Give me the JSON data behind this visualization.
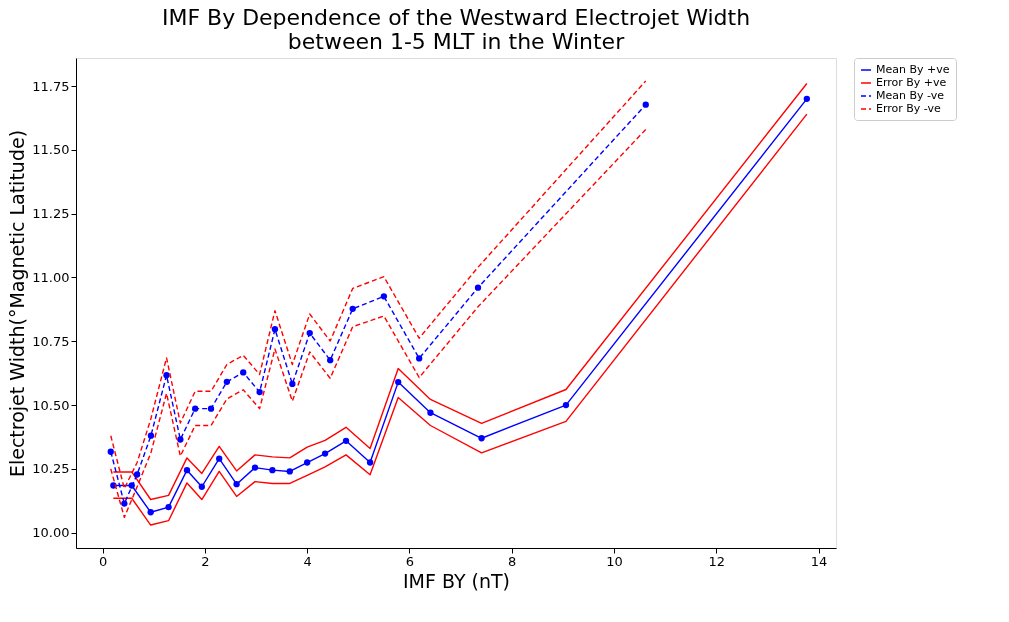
{
  "chart_data": {
    "type": "line",
    "title": [
      "IMF By Dependence of the Westward Electrojet Width",
      "between 1-5 MLT in the Winter"
    ],
    "xlabel": "IMF BY (nT)",
    "ylabel": "Electrojet Width(°Magnetic Latitude)",
    "xlim": [
      -0.52,
      14.34
    ],
    "ylim": [
      9.94,
      11.86
    ],
    "xticks": [
      0,
      2,
      4,
      6,
      8,
      10,
      12,
      14
    ],
    "yticks": [
      {
        "value": 10.0,
        "label": "10.00"
      },
      10.25,
      {
        "value": 10.5,
        "label": "10.50"
      },
      10.75,
      {
        "value": 11.0,
        "label": "11.00"
      },
      11.25,
      {
        "value": 11.5,
        "label": "11.50"
      },
      11.75
    ],
    "grid": false,
    "legend": "top right",
    "series": [
      {
        "name": "Mean By +ve",
        "color": "#0000ff",
        "marker": "circle",
        "line_style": "solid",
        "x": [
          0.21,
          0.57,
          0.94,
          1.29,
          1.65,
          1.94,
          2.28,
          2.62,
          2.98,
          3.32,
          3.66,
          4.0,
          4.35,
          4.76,
          5.23,
          5.78,
          6.41,
          7.41,
          9.06,
          13.77
        ],
        "values": [
          10.185,
          10.185,
          10.08,
          10.1,
          10.245,
          10.18,
          10.29,
          10.19,
          10.255,
          10.245,
          10.24,
          10.275,
          10.31,
          10.36,
          10.275,
          10.59,
          10.47,
          10.37,
          10.5,
          11.7
        ]
      },
      {
        "name": "Error By +ve",
        "color": "#ff0000",
        "marker": "none",
        "line_style": "solid",
        "x": [
          0.21,
          0.57,
          0.94,
          1.29,
          1.65,
          1.94,
          2.28,
          2.62,
          2.98,
          3.32,
          3.66,
          4.0,
          4.35,
          4.76,
          5.23,
          5.78,
          6.41,
          7.41,
          9.06,
          13.77
        ],
        "values": [
          10.238,
          10.238,
          10.13,
          10.146,
          10.293,
          10.232,
          10.338,
          10.242,
          10.305,
          10.297,
          10.293,
          10.335,
          10.362,
          10.413,
          10.33,
          10.643,
          10.522,
          10.428,
          10.561,
          11.76
        ]
      },
      {
        "color": "#ff0000",
        "marker": "none",
        "line_style": "solid",
        "x": [
          0.21,
          0.57,
          0.94,
          1.29,
          1.65,
          1.94,
          2.28,
          2.62,
          2.98,
          3.32,
          3.66,
          4.0,
          4.35,
          4.76,
          5.23,
          5.78,
          6.41,
          7.41,
          9.06,
          13.77
        ],
        "values": [
          10.135,
          10.135,
          10.03,
          10.047,
          10.195,
          10.13,
          10.24,
          10.142,
          10.2,
          10.193,
          10.193,
          10.225,
          10.258,
          10.305,
          10.227,
          10.53,
          10.42,
          10.313,
          10.436,
          11.64
        ]
      },
      {
        "name": "Mean By -ve",
        "color": "#0000ff",
        "marker": "circle",
        "line_style": "dashed",
        "x": [
          0.16,
          0.425,
          0.675,
          0.945,
          1.25,
          1.52,
          1.81,
          2.12,
          2.43,
          2.75,
          3.07,
          3.37,
          3.71,
          4.05,
          4.45,
          4.89,
          5.5,
          6.19,
          7.34,
          10.62
        ],
        "values": [
          10.317,
          10.114,
          10.228,
          10.38,
          10.617,
          10.365,
          10.486,
          10.486,
          10.591,
          10.628,
          10.551,
          10.797,
          10.583,
          10.782,
          10.676,
          10.877,
          10.926,
          10.683,
          10.96,
          11.677
        ]
      },
      {
        "name": "Error By -ve",
        "color": "#ff0000",
        "marker": "none",
        "line_style": "dashed",
        "x": [
          0.16,
          0.425,
          0.675,
          0.945,
          1.25,
          1.52,
          1.81,
          2.12,
          2.43,
          2.75,
          3.07,
          3.37,
          3.71,
          4.05,
          4.45,
          4.89,
          5.5,
          6.19,
          7.34,
          10.62
        ],
        "values": [
          10.38,
          10.173,
          10.275,
          10.447,
          10.685,
          10.43,
          10.554,
          10.554,
          10.659,
          10.695,
          10.62,
          10.87,
          10.659,
          10.857,
          10.751,
          10.957,
          11.003,
          10.762,
          11.04,
          11.77
        ]
      },
      {
        "color": "#ff0000",
        "marker": "none",
        "line_style": "dashed",
        "x": [
          0.16,
          0.425,
          0.675,
          0.945,
          1.25,
          1.52,
          1.81,
          2.12,
          2.43,
          2.75,
          3.07,
          3.37,
          3.71,
          4.05,
          4.45,
          4.89,
          5.5,
          6.19,
          7.34,
          10.62
        ],
        "values": [
          10.25,
          10.06,
          10.18,
          10.313,
          10.546,
          10.3,
          10.42,
          10.42,
          10.524,
          10.56,
          10.486,
          10.72,
          10.515,
          10.708,
          10.605,
          10.807,
          10.849,
          10.608,
          10.885,
          11.58
        ]
      }
    ]
  }
}
